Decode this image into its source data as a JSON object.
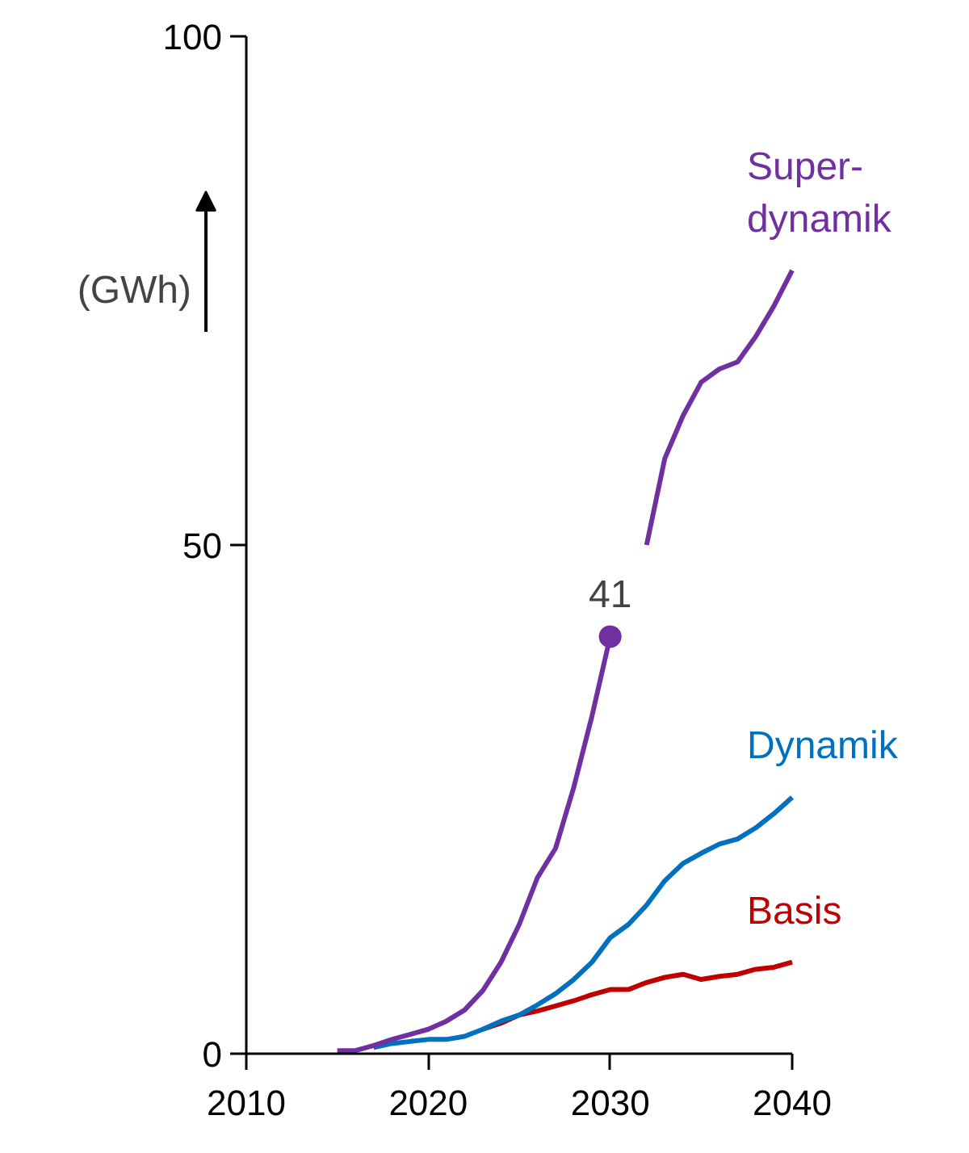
{
  "chart_data": {
    "type": "line",
    "ylabel": "(GWh)",
    "x": [
      2015,
      2016,
      2017,
      2018,
      2019,
      2020,
      2021,
      2022,
      2023,
      2024,
      2025,
      2026,
      2027,
      2028,
      2029,
      2030,
      2031,
      2032,
      2033,
      2034,
      2035,
      2036,
      2037,
      2038,
      2039,
      2040
    ],
    "xlim": [
      2010,
      2040
    ],
    "xticks": [
      2010,
      2020,
      2030,
      2040
    ],
    "ylim": [
      0,
      100
    ],
    "yticks": [
      0,
      50,
      100
    ],
    "series": [
      {
        "name": "Super-\ndynamik",
        "color": "#7030a0",
        "values": [
          0.3,
          0.3,
          0.8,
          1.4,
          1.9,
          2.4,
          3.2,
          4.3,
          6.2,
          9.0,
          12.7,
          17.3,
          20.2,
          26.2,
          33.2,
          41,
          null,
          50,
          58.5,
          62.7,
          66,
          67.3,
          68,
          70.5,
          73.5,
          77
        ]
      },
      {
        "name": "Dynamik",
        "color": "#0070c0",
        "values": [
          null,
          null,
          0.6,
          1.0,
          1.2,
          1.4,
          1.4,
          1.7,
          2.4,
          3.2,
          3.8,
          4.8,
          5.9,
          7.3,
          9.0,
          11.4,
          12.7,
          14.6,
          17,
          18.7,
          19.7,
          20.6,
          21.1,
          22.2,
          23.6,
          25.2
        ]
      },
      {
        "name": "Basis",
        "color": "#c00000",
        "values": [
          null,
          null,
          null,
          null,
          null,
          null,
          null,
          null,
          2.4,
          3.0,
          3.8,
          4.2,
          4.7,
          5.2,
          5.8,
          6.3,
          6.3,
          7.0,
          7.5,
          7.8,
          7.3,
          7.6,
          7.8,
          8.3,
          8.5,
          9.0
        ]
      }
    ],
    "annotations": [
      {
        "text": "41",
        "x": 2030,
        "y": 41
      }
    ],
    "grid": false,
    "marker": "none",
    "line_style": "solid"
  }
}
